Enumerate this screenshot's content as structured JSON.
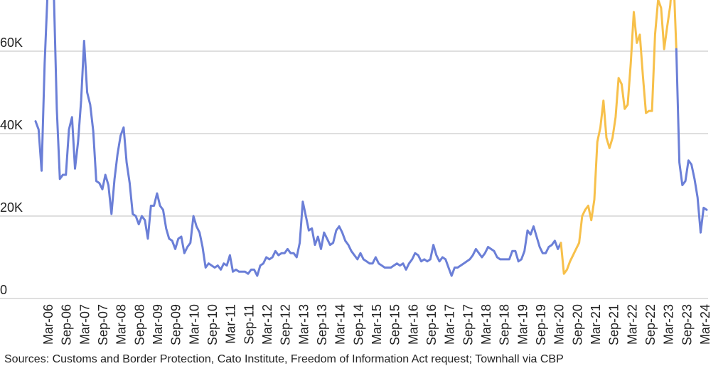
{
  "chart_data": {
    "type": "line",
    "ylim": [
      0,
      72000
    ],
    "grid": true,
    "yticks": [
      {
        "value": 0,
        "label": "0"
      },
      {
        "value": 20000,
        "label": "20K"
      },
      {
        "value": 40000,
        "label": "40K"
      },
      {
        "value": 60000,
        "label": "60K"
      }
    ],
    "xticks": [
      "Mar-06",
      "Sep-06",
      "Mar-07",
      "Sep-07",
      "Mar-08",
      "Sep-08",
      "Mar-09",
      "Sep-09",
      "Mar-10",
      "Sep-10",
      "Mar-11",
      "Sep-11",
      "Mar-12",
      "Sep-12",
      "Mar-13",
      "Sep-13",
      "Mar-14",
      "Sep-14",
      "Mar-15",
      "Sep-15",
      "Mar-16",
      "Sep-16",
      "Mar-17",
      "Sep-17",
      "Mar-18",
      "Sep-18",
      "Mar-19",
      "Sep-19",
      "Mar-20",
      "Sep-20",
      "Mar-21",
      "Sep-21",
      "Mar-22",
      "Sep-22",
      "Mar-23",
      "Sep-23",
      "Mar-24"
    ],
    "colors": {
      "blue": "#6b7fd7",
      "yellow": "#f7c04a",
      "grid": "#cccccc"
    },
    "segments": [
      {
        "color": "blue",
        "values": [
          43000,
          41000,
          31000,
          57000,
          75000,
          80000,
          75000,
          46000,
          29000,
          30000,
          30000,
          41000,
          44000,
          31500,
          38000,
          48000,
          62500,
          50000,
          47000,
          40500,
          28500,
          28000,
          26500,
          30000,
          27500,
          20500,
          29000,
          35000,
          39500,
          41500,
          33000,
          28000,
          20500,
          20000,
          18000,
          20000,
          19000,
          14500,
          22500,
          22500,
          25500,
          22500,
          21500,
          17000,
          14500,
          14000,
          12000,
          14500,
          15000,
          11000,
          12500,
          13500,
          20000,
          17500,
          16000,
          12500,
          7500,
          8500,
          8000,
          7500,
          8000,
          7000,
          8500,
          8000,
          10500,
          6500,
          7000,
          6500,
          6500,
          6500,
          6000,
          7000,
          7000,
          5500,
          8000,
          8500,
          10000,
          9500,
          10000,
          11500,
          10500,
          11000,
          11000,
          12000,
          11000,
          11000,
          10000,
          13500,
          23500,
          20000,
          16500,
          17000,
          13000,
          15000,
          12000,
          16000,
          14500,
          13000,
          13500,
          16500,
          17500,
          16000,
          14000,
          13000,
          11500,
          10500,
          9500,
          11000,
          9500,
          9000,
          8500,
          8500,
          10000,
          8500,
          8000,
          7500,
          7500,
          7500,
          8000,
          8500,
          8000,
          8500,
          7000,
          8500,
          9500,
          11000,
          10500,
          9000,
          9500,
          9000,
          9500,
          13000,
          10500,
          9000,
          10000,
          9500,
          7500,
          5500,
          7500,
          7500,
          8000,
          8500,
          9000,
          9500,
          10500,
          12000,
          11000,
          10000,
          11000,
          12500,
          12000,
          11500,
          10000,
          9500,
          9500,
          9500,
          9500,
          11500,
          11500,
          9000,
          9500,
          11500,
          16500,
          15500,
          17500,
          15000,
          12500,
          11000,
          11000,
          12500,
          13000,
          14000,
          12000,
          13500
        ]
      },
      {
        "color": "yellow",
        "values": [
          13500,
          6000,
          7000,
          9000,
          10500,
          12000,
          13500,
          20000,
          21500,
          22500,
          19000,
          24000,
          38000,
          41500,
          48000,
          39000,
          36500,
          39000,
          44000,
          53500,
          52000,
          46000,
          47000,
          57000,
          69500,
          62000,
          64000,
          54000,
          45000,
          45500,
          45500,
          64000,
          72500,
          70500,
          60500,
          66000,
          71000,
          80000,
          60500
        ]
      },
      {
        "color": "blue",
        "values": [
          60500,
          33000,
          27500,
          28500,
          33500,
          32500,
          29000,
          24500,
          16000,
          22000,
          21500
        ]
      }
    ]
  },
  "footer": {
    "source": "Sources: Customs and Border Protection, Cato Institute, Freedom of Information Act request; Townhall via CBP"
  }
}
